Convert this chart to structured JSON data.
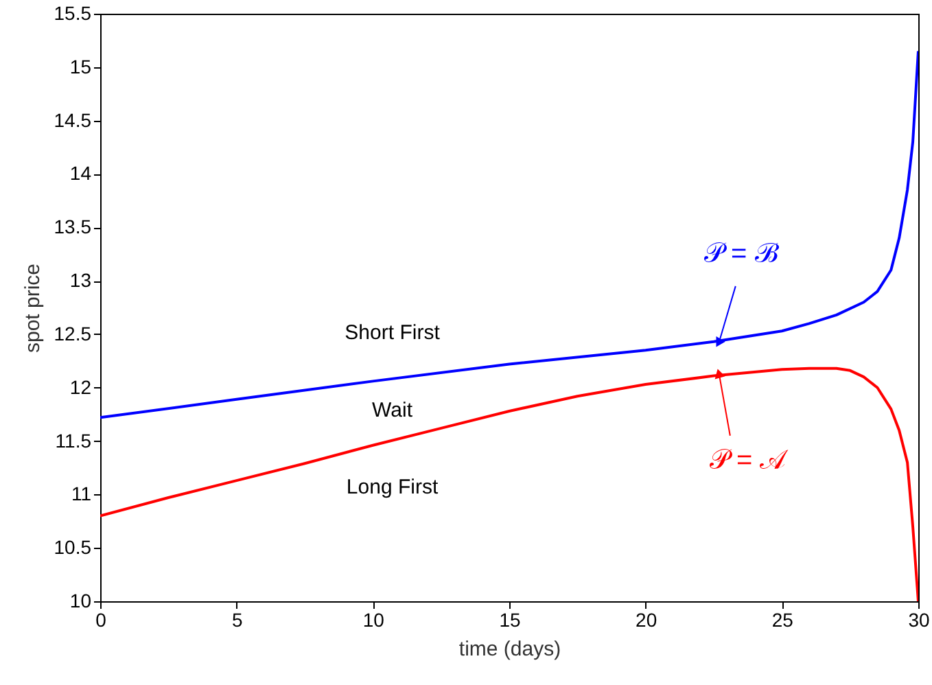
{
  "chart_data": {
    "type": "line",
    "xlabel": "time (days)",
    "ylabel": "spot price",
    "xlim": [
      0,
      30
    ],
    "xticks": [
      0,
      5,
      10,
      15,
      20,
      25,
      30
    ],
    "ylim": [
      10,
      15.5
    ],
    "yticks": [
      10,
      10.5,
      11,
      11.5,
      12,
      12.5,
      13,
      13.5,
      14,
      14.5,
      15,
      15.5
    ],
    "grid": false,
    "line_style": "solid",
    "series": [
      {
        "color": "#0000ff",
        "x": [
          0,
          5,
          10,
          15,
          20,
          22.5,
          25,
          26,
          27,
          28,
          28.5,
          29,
          29.3,
          29.6,
          29.8,
          30
        ],
        "values": [
          11.72,
          11.89,
          12.06,
          12.22,
          12.35,
          12.43,
          12.53,
          12.6,
          12.68,
          12.8,
          12.9,
          13.1,
          13.4,
          13.85,
          14.3,
          15.15
        ]
      },
      {
        "color": "#ff0000",
        "x": [
          0,
          2.5,
          5,
          7.5,
          10,
          12.5,
          15,
          17.5,
          20,
          22.5,
          25,
          26,
          27,
          27.5,
          28,
          28.5,
          29,
          29.3,
          29.6,
          29.8,
          30
        ],
        "values": [
          10.8,
          10.97,
          11.13,
          11.29,
          11.46,
          11.62,
          11.78,
          11.92,
          12.03,
          12.11,
          12.17,
          12.18,
          12.18,
          12.16,
          12.1,
          12.0,
          11.8,
          11.6,
          11.3,
          10.7,
          10.0
        ]
      }
    ],
    "annotations": [
      "Short First",
      "Wait",
      "Long First",
      {
        "text": "𝒫 = ℬ",
        "x": 22.7,
        "y": 12.43
      },
      {
        "text": "𝒫 = 𝒜",
        "x": 22.7,
        "y": 12.12
      }
    ]
  }
}
